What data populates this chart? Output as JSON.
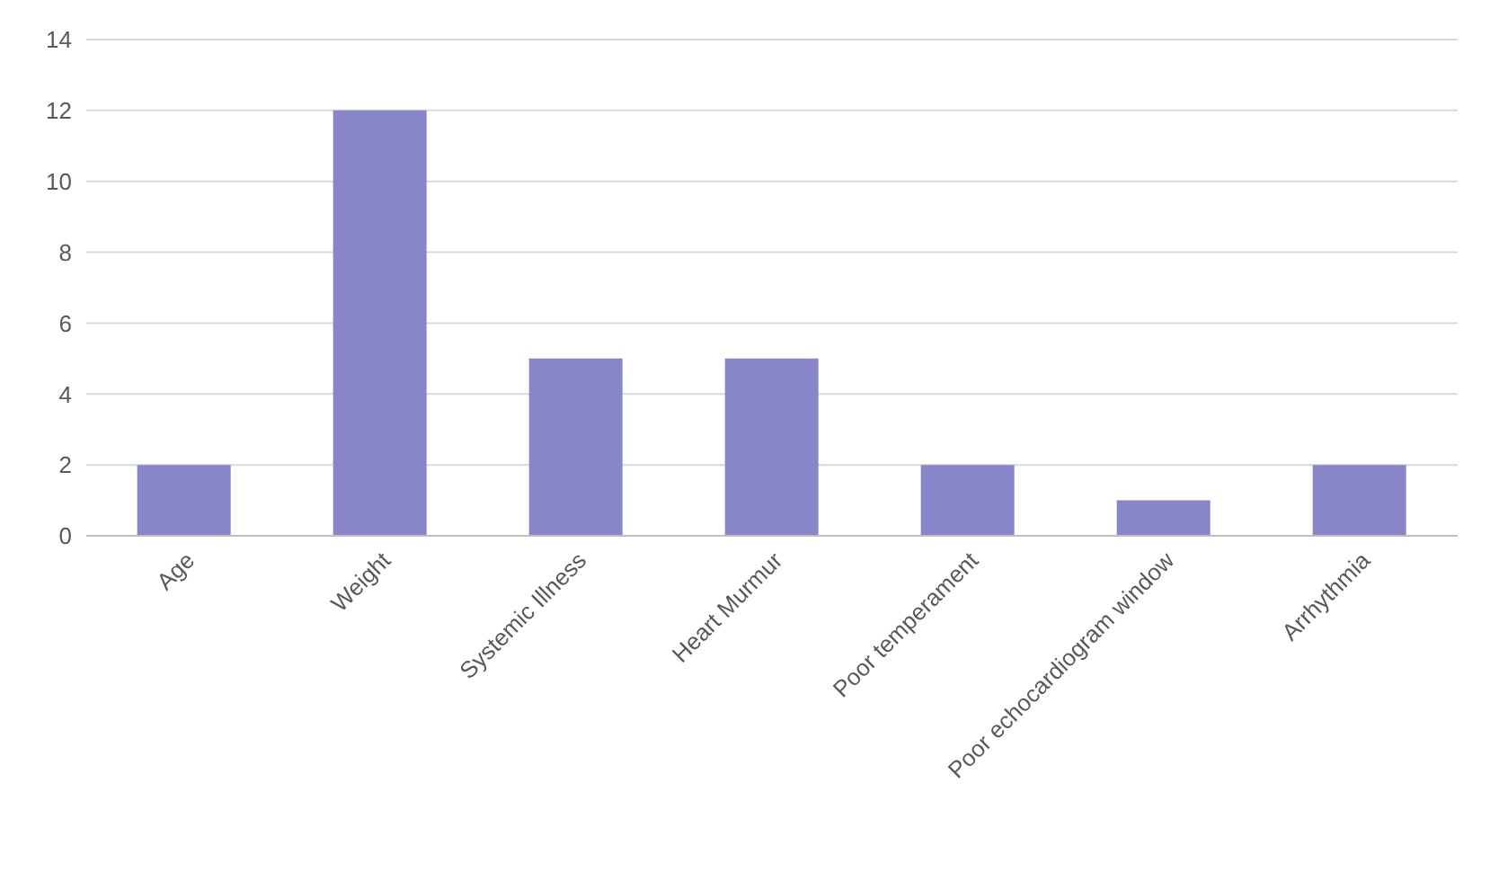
{
  "chart_data": {
    "type": "bar",
    "categories": [
      "Age",
      "Weight",
      "Systemic Illness",
      "Heart Murmur",
      "Poor temperament",
      "Poor echocardiogram window",
      "Arrhythmia"
    ],
    "values": [
      2,
      12,
      5,
      5,
      2,
      1,
      2
    ],
    "color": "#8886c8",
    "ylim": [
      0,
      14
    ],
    "yticks": [
      0,
      2,
      4,
      6,
      8,
      10,
      12,
      14
    ],
    "grid": "y",
    "legend": false
  }
}
